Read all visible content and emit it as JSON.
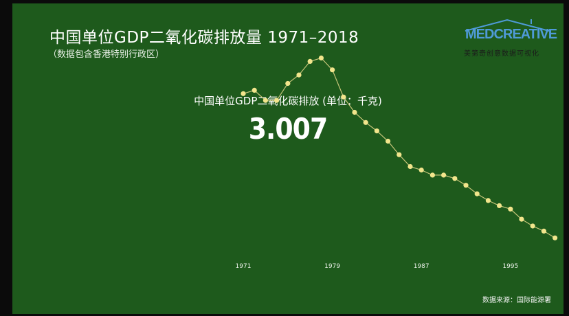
{
  "title": "中国单位GDP二氧化碳排放量 1971–2018",
  "subtitle": "（数据包含香港特别行政区）",
  "logo": {
    "main": "MEDCREATIVE",
    "sub": "美第奇创意数据可视化"
  },
  "chart_header": "中国单位GDP二氧化碳排放 (单位：千克)",
  "current_value": "3.007",
  "source": "数据来源：国际能源署",
  "colors": {
    "background": "#1e5a1c",
    "point": "#f2e58c",
    "line": "#c7c67a",
    "text": "#ffffff"
  },
  "chart_data": {
    "type": "line",
    "title": "中国单位GDP二氧化碳排放 (单位：千克)",
    "xlabel": "",
    "ylabel": "",
    "x_ticks": [
      "1971",
      "1979",
      "1987",
      "1995"
    ],
    "x": [
      1971,
      1972,
      1973,
      1974,
      1975,
      1976,
      1977,
      1978,
      1979,
      1980,
      1981,
      1982,
      1983,
      1984,
      1985,
      1986,
      1987,
      1988,
      1989,
      1990,
      1991,
      1992,
      1993,
      1994,
      1995,
      1996,
      1997,
      1998,
      1999
    ],
    "y": [
      2.79,
      2.81,
      2.75,
      2.75,
      2.85,
      2.9,
      2.98,
      3.0,
      2.93,
      2.77,
      2.68,
      2.62,
      2.57,
      2.51,
      2.43,
      2.36,
      2.34,
      2.31,
      2.31,
      2.29,
      2.25,
      2.2,
      2.16,
      2.13,
      2.11,
      2.05,
      2.01,
      1.98,
      1.94
    ],
    "ylim": [
      1.5,
      3.2
    ],
    "series": [
      {
        "marker": "dot",
        "color": "#f2e58c"
      }
    ]
  }
}
